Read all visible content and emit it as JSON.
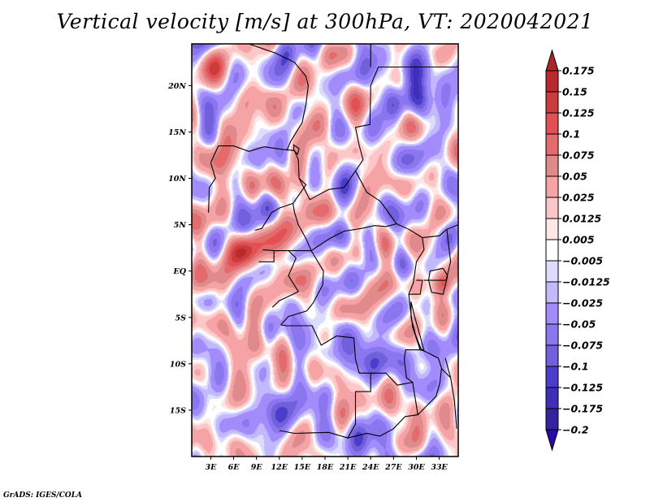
{
  "chart_data": {
    "type": "heatmap",
    "title": "Vertical velocity [m/s] at 300hPa, VT: 2020042021",
    "variable": "Vertical velocity",
    "units": "m/s",
    "level": "300hPa",
    "valid_time": "2020042021",
    "xlabel": "",
    "ylabel": "",
    "x_ticks": [
      "3E",
      "6E",
      "9E",
      "12E",
      "15E",
      "18E",
      "21E",
      "24E",
      "27E",
      "30E",
      "33E"
    ],
    "x_tick_values": [
      3,
      6,
      9,
      12,
      15,
      18,
      21,
      24,
      27,
      30,
      33
    ],
    "y_ticks": [
      "20N",
      "15N",
      "10N",
      "5N",
      "EQ",
      "5S",
      "10S",
      "15S"
    ],
    "y_tick_values": [
      20,
      15,
      10,
      5,
      0,
      -5,
      -10,
      -15
    ],
    "xlim": [
      0.5,
      35.5
    ],
    "ylim": [
      -20,
      24.5
    ],
    "grid": false,
    "colorbar": {
      "position": "right",
      "orientation": "vertical",
      "extend": "both",
      "levels": [
        0.175,
        0.15,
        0.125,
        0.1,
        0.075,
        0.05,
        0.025,
        0.0125,
        0.005,
        -0.005,
        -0.0125,
        -0.025,
        -0.05,
        -0.075,
        -0.1,
        -0.125,
        -0.175,
        -0.2
      ],
      "labels": [
        "0.175",
        "0.15",
        "0.125",
        "0.1",
        "0.075",
        "0.05",
        "0.025",
        "0.0125",
        "0.005",
        "−0.005",
        "−0.0125",
        "−0.025",
        "−0.05",
        "−0.075",
        "−0.1",
        "−0.125",
        "−0.175",
        "−0.2"
      ],
      "colors_top_to_bottom": [
        "#b02428",
        "#b82a2e",
        "#cc3b3e",
        "#e25053",
        "#e46a6c",
        "#e08a8c",
        "#f5a3a4",
        "#fcc7c8",
        "#fde6e6",
        "#ffffff",
        "#dcdcfc",
        "#c2b8fc",
        "#a28cfc",
        "#8a76ee",
        "#7160dc",
        "#4c3ccc",
        "#3f2fb8",
        "#33249e",
        "#2a0aa8"
      ]
    },
    "field_description": "Mixed positive (red) and negative (blue) vertical velocity over Central Africa; strong negative over Sudan/Chad north-east, strong positive patches near Lake Victoria, eastern DRC and northern Angola."
  },
  "footer": {
    "credit": "GrADS: IGES/COLA"
  }
}
